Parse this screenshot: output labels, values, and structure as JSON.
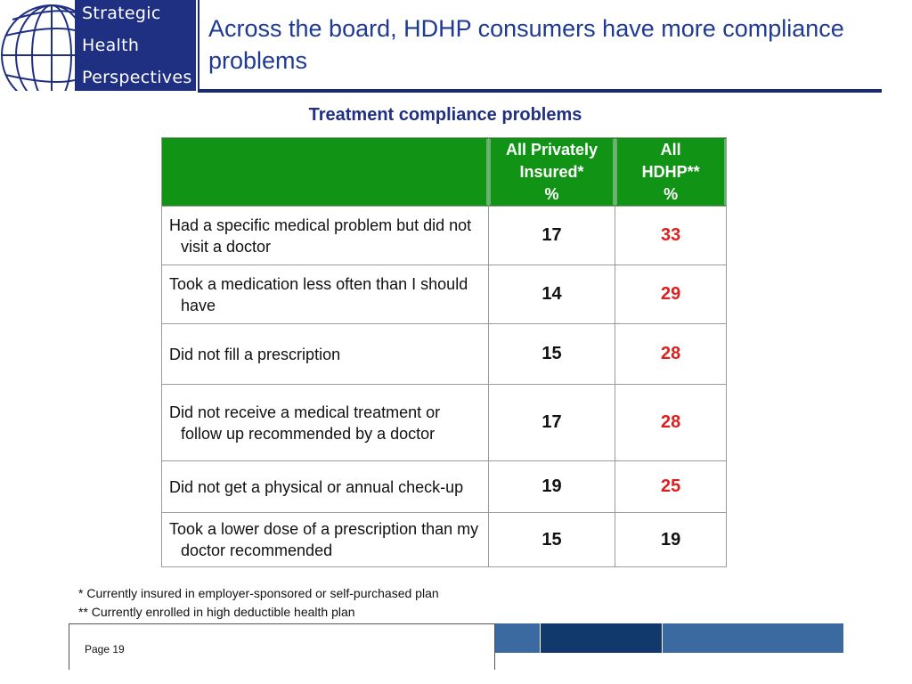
{
  "logo": {
    "line1": "Strategic",
    "line2": "Health",
    "line3": "Perspectives",
    "brand_color": "#1f2f82"
  },
  "title": "Across the board, HDHP consumers have more compliance problems",
  "table_title": "Treatment compliance problems",
  "table": {
    "header": {
      "col1": "",
      "col2_line1": "All Privately",
      "col2_line2": "Insured*",
      "col2_line3": "%",
      "col3_line1": "All",
      "col3_line2": "HDHP**",
      "col3_line3": "%",
      "header_color": "#119315"
    },
    "rows": [
      {
        "label": "Had a specific medical problem but did not visit a doctor",
        "privately_insured": "17",
        "hdhp": "33",
        "hdhp_highlight": true
      },
      {
        "label": "Took a medication less often than I should have",
        "privately_insured": "14",
        "hdhp": "29",
        "hdhp_highlight": true
      },
      {
        "label": "Did not fill a prescription",
        "privately_insured": "15",
        "hdhp": "28",
        "hdhp_highlight": true
      },
      {
        "label": "Did not receive a medical treatment or follow up recommended by a doctor",
        "privately_insured": "17",
        "hdhp": "28",
        "hdhp_highlight": true
      },
      {
        "label": "Did not get a physical or annual check-up",
        "privately_insured": "19",
        "hdhp": "25",
        "hdhp_highlight": true
      },
      {
        "label": "Took a lower dose of a prescription than my doctor recommended",
        "privately_insured": "15",
        "hdhp": "19",
        "hdhp_highlight": false
      }
    ],
    "highlight_color": "#dd1f1f"
  },
  "footnotes": {
    "note1": "* Currently insured in employer-sponsored or self-purchased plan",
    "note2": "** Currently enrolled in high deductible health plan"
  },
  "footer": {
    "page_label": "Page 19"
  }
}
